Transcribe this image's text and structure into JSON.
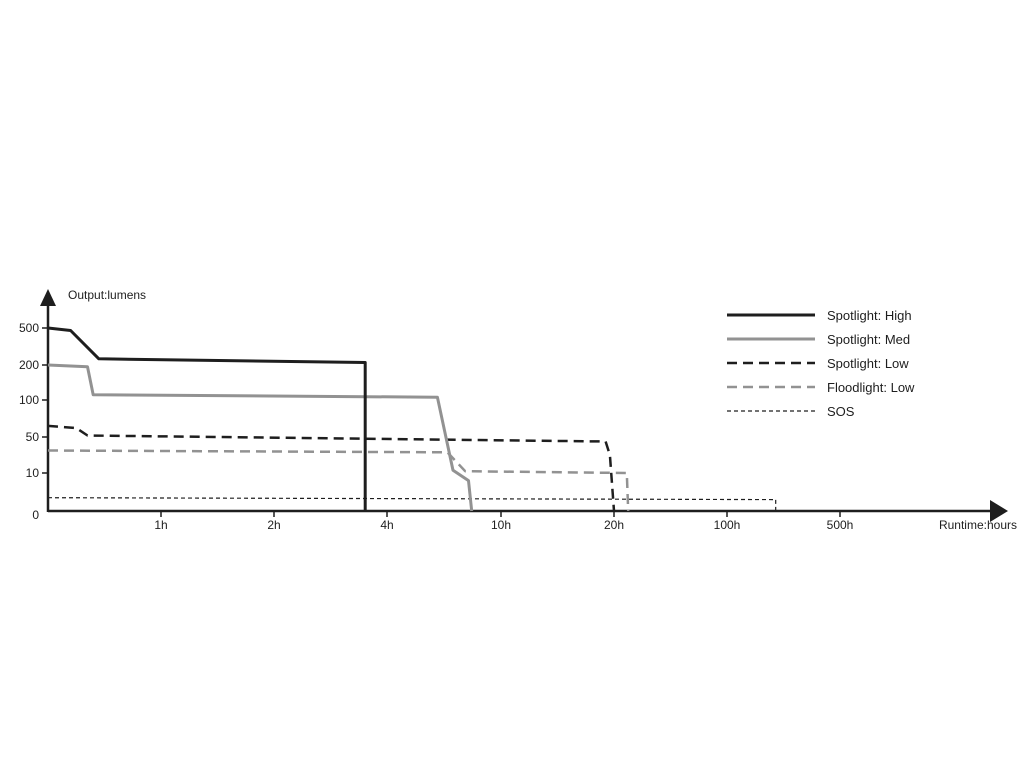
{
  "chart_data": {
    "type": "line",
    "ylabel": "Output:lumens",
    "xlabel": "Runtime:hours",
    "y_ticks": [
      "0",
      "10",
      "50",
      "100",
      "200",
      "500"
    ],
    "x_ticks": [
      "1h",
      "2h",
      "4h",
      "10h",
      "20h",
      "100h",
      "500h"
    ],
    "grid": false,
    "legend_position": "top-right",
    "series": [
      {
        "name": "Spotlight: High",
        "color": "#1e1e1e",
        "style": "solid-thick",
        "points": [
          [
            0,
            500
          ],
          [
            0.2,
            480
          ],
          [
            0.45,
            250
          ],
          [
            3.5,
            220
          ],
          [
            3.5,
            0
          ]
        ]
      },
      {
        "name": "Spotlight: Med",
        "color": "#929292",
        "style": "solid-thick",
        "points": [
          [
            0,
            200
          ],
          [
            0.35,
            195
          ],
          [
            0.4,
            115
          ],
          [
            6,
            108
          ],
          [
            6.8,
            13
          ],
          [
            7.7,
            8
          ],
          [
            7.9,
            0
          ]
        ]
      },
      {
        "name": "Spotlight: Low",
        "color": "#1e1e1e",
        "style": "dashed-thick",
        "points": [
          [
            0,
            65
          ],
          [
            0.25,
            62
          ],
          [
            0.35,
            52
          ],
          [
            19,
            45
          ],
          [
            19.5,
            30
          ],
          [
            20,
            0
          ]
        ]
      },
      {
        "name": "Floodlight: Low",
        "color": "#929292",
        "style": "dashed-thick",
        "points": [
          [
            0,
            35
          ],
          [
            6.5,
            33
          ],
          [
            7.5,
            12
          ],
          [
            24,
            10
          ],
          [
            24.5,
            0
          ]
        ]
      },
      {
        "name": "SOS",
        "color": "#1e1e1e",
        "style": "dashed-thin",
        "points": [
          [
            0,
            3.5
          ],
          [
            200,
            3
          ],
          [
            200,
            0
          ]
        ]
      }
    ]
  }
}
